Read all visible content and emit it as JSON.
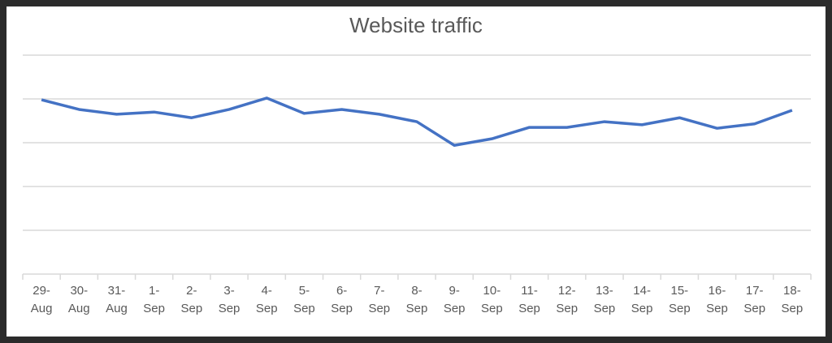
{
  "chart_data": {
    "type": "line",
    "title": "Website traffic",
    "categories": [
      "29-Aug",
      "30-Aug",
      "31-Aug",
      "1-Sep",
      "2-Sep",
      "3-Sep",
      "4-Sep",
      "5-Sep",
      "6-Sep",
      "7-Sep",
      "8-Sep",
      "9-Sep",
      "10-Sep",
      "11-Sep",
      "12-Sep",
      "13-Sep",
      "14-Sep",
      "15-Sep",
      "16-Sep",
      "17-Sep",
      "18-Sep"
    ],
    "values": [
      3.98,
      3.76,
      3.65,
      3.7,
      3.57,
      3.76,
      4.02,
      3.67,
      3.76,
      3.65,
      3.48,
      2.94,
      3.09,
      3.35,
      3.35,
      3.48,
      3.41,
      3.57,
      3.33,
      3.43,
      3.74
    ],
    "color": "#4472c4",
    "ylim": [
      0,
      5
    ],
    "yticks": [
      0,
      1,
      2,
      3,
      4,
      5
    ],
    "grid": true
  }
}
